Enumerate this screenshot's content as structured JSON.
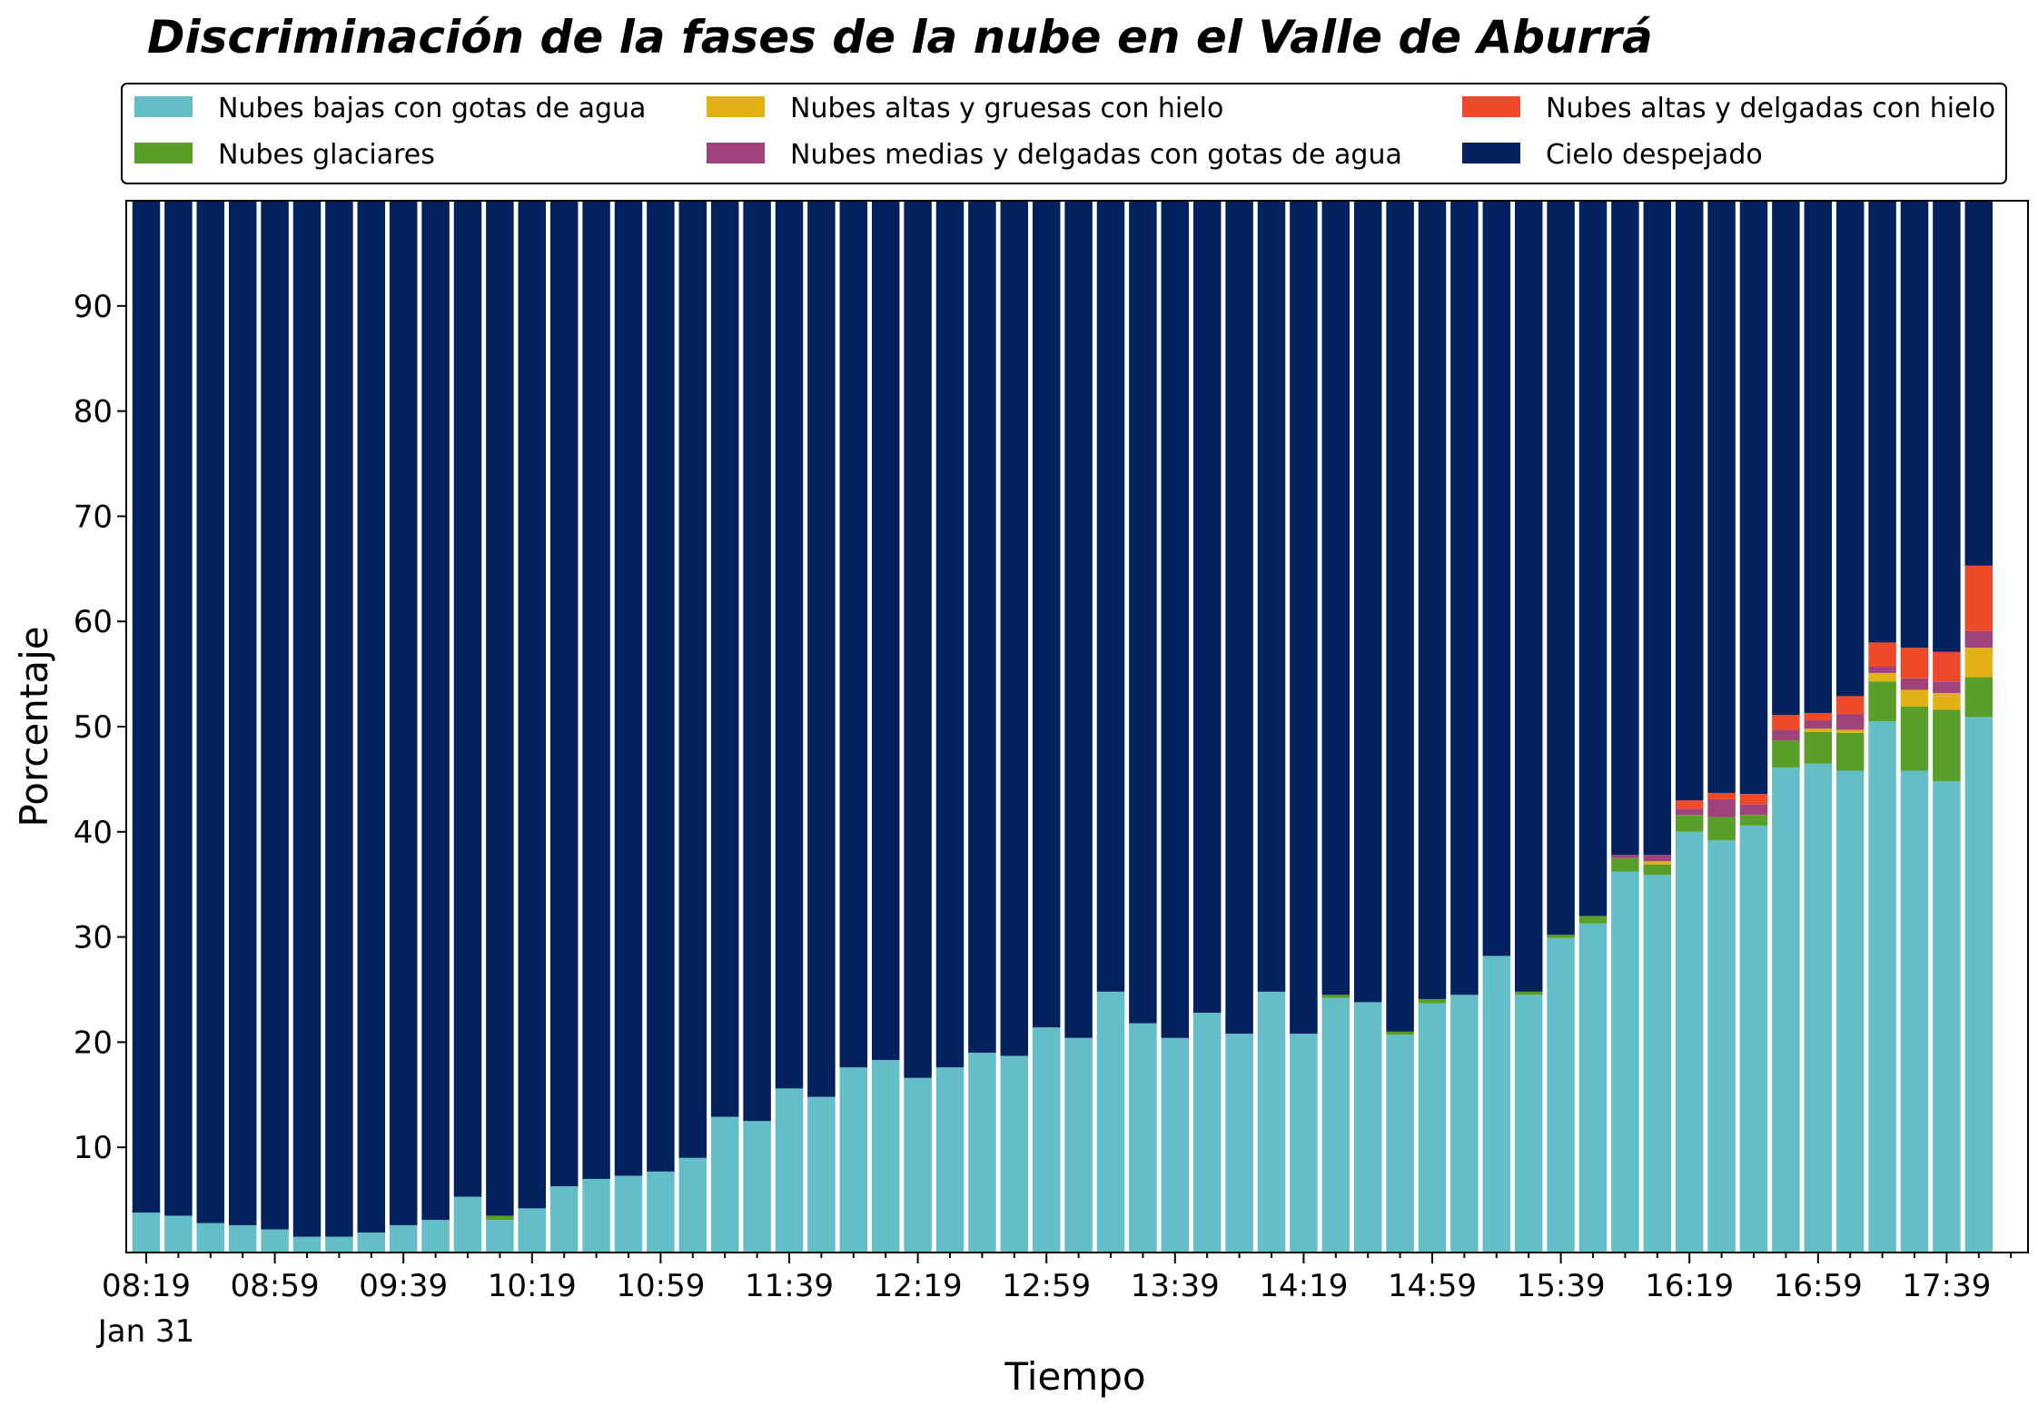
{
  "chart_data": {
    "type": "bar",
    "stacked": true,
    "title": "Discriminación de la fases de la nube en el Valle de Aburrá",
    "xlabel": "Tiempo",
    "ylabel": "Porcentaje",
    "ylim": [
      0,
      100
    ],
    "yticks": [
      10,
      20,
      30,
      40,
      50,
      60,
      70,
      80,
      90
    ],
    "grid": false,
    "legend_position": "top",
    "x_tick_labels": [
      "08:19",
      "08:59",
      "09:39",
      "10:19",
      "10:59",
      "11:39",
      "12:19",
      "12:59",
      "13:39",
      "14:19",
      "14:59",
      "15:39",
      "16:19",
      "16:59",
      "17:39"
    ],
    "x_date_label": "Jan 31",
    "series": [
      {
        "name": "Nubes bajas con gotas de agua",
        "color": "#64bec8",
        "values": [
          3.8,
          3.5,
          2.8,
          2.6,
          2.2,
          1.5,
          1.5,
          1.9,
          2.6,
          3.1,
          5.3,
          3.1,
          4.2,
          6.3,
          7.0,
          7.3,
          7.7,
          9.0,
          12.9,
          12.5,
          15.6,
          14.8,
          17.6,
          18.3,
          16.6,
          17.6,
          19.0,
          18.7,
          21.4,
          20.4,
          24.8,
          21.8,
          20.4,
          22.8,
          20.8,
          24.8,
          20.8,
          24.2,
          23.8,
          20.7,
          23.7,
          24.5,
          28.2,
          24.5,
          29.9,
          31.3,
          36.2,
          35.9,
          40.0,
          39.2,
          40.6,
          46.1,
          46.5,
          45.8,
          50.5,
          45.8,
          44.8,
          50.9
        ]
      },
      {
        "name": "Nubes glaciares",
        "color": "#5a9e2a",
        "values": [
          0,
          0,
          0,
          0,
          0,
          0,
          0,
          0,
          0,
          0,
          0,
          0.4,
          0,
          0,
          0,
          0,
          0,
          0,
          0,
          0,
          0,
          0,
          0,
          0,
          0,
          0,
          0,
          0,
          0,
          0,
          0,
          0,
          0,
          0,
          0,
          0,
          0,
          0.3,
          0,
          0.3,
          0.4,
          0,
          0,
          0.3,
          0.3,
          0.7,
          1.3,
          1.0,
          1.6,
          2.2,
          1.0,
          2.6,
          3.0,
          3.6,
          3.8,
          6.1,
          6.8,
          3.8
        ]
      },
      {
        "name": "Nubes altas y gruesas con hielo",
        "color": "#e2b116",
        "values": [
          0,
          0,
          0,
          0,
          0,
          0,
          0,
          0,
          0,
          0,
          0,
          0,
          0,
          0,
          0,
          0,
          0,
          0,
          0,
          0,
          0,
          0,
          0,
          0,
          0,
          0,
          0,
          0,
          0,
          0,
          0,
          0,
          0,
          0,
          0,
          0,
          0,
          0,
          0,
          0,
          0,
          0,
          0,
          0,
          0,
          0,
          0,
          0.3,
          0,
          0,
          0,
          0,
          0.3,
          0.3,
          0.8,
          1.6,
          1.6,
          2.8
        ]
      },
      {
        "name": "Nubes medias y delgadas con gotas de agua",
        "color": "#a0437c",
        "values": [
          0,
          0,
          0,
          0,
          0,
          0,
          0,
          0,
          0,
          0,
          0,
          0,
          0,
          0,
          0,
          0,
          0,
          0,
          0,
          0,
          0,
          0,
          0,
          0,
          0,
          0,
          0,
          0,
          0,
          0,
          0,
          0,
          0,
          0,
          0,
          0,
          0,
          0,
          0,
          0,
          0,
          0,
          0,
          0,
          0,
          0,
          0.3,
          0.6,
          0.6,
          1.7,
          1.0,
          1.0,
          0.8,
          1.5,
          0.6,
          1.1,
          1.1,
          1.6
        ]
      },
      {
        "name": "Nubes altas y delgadas con hielo",
        "color": "#ee4a2a",
        "values": [
          0,
          0,
          0,
          0,
          0,
          0,
          0,
          0,
          0,
          0,
          0,
          0,
          0,
          0,
          0,
          0,
          0,
          0,
          0,
          0,
          0,
          0,
          0,
          0,
          0,
          0,
          0,
          0,
          0,
          0,
          0,
          0,
          0,
          0,
          0,
          0,
          0,
          0,
          0,
          0,
          0,
          0,
          0,
          0,
          0,
          0,
          0,
          0,
          0.8,
          0.6,
          1.0,
          1.4,
          0.7,
          1.7,
          2.3,
          2.9,
          2.8,
          6.2
        ]
      },
      {
        "name": "Cielo despejado",
        "color": "#03205f",
        "values": []
      }
    ]
  }
}
